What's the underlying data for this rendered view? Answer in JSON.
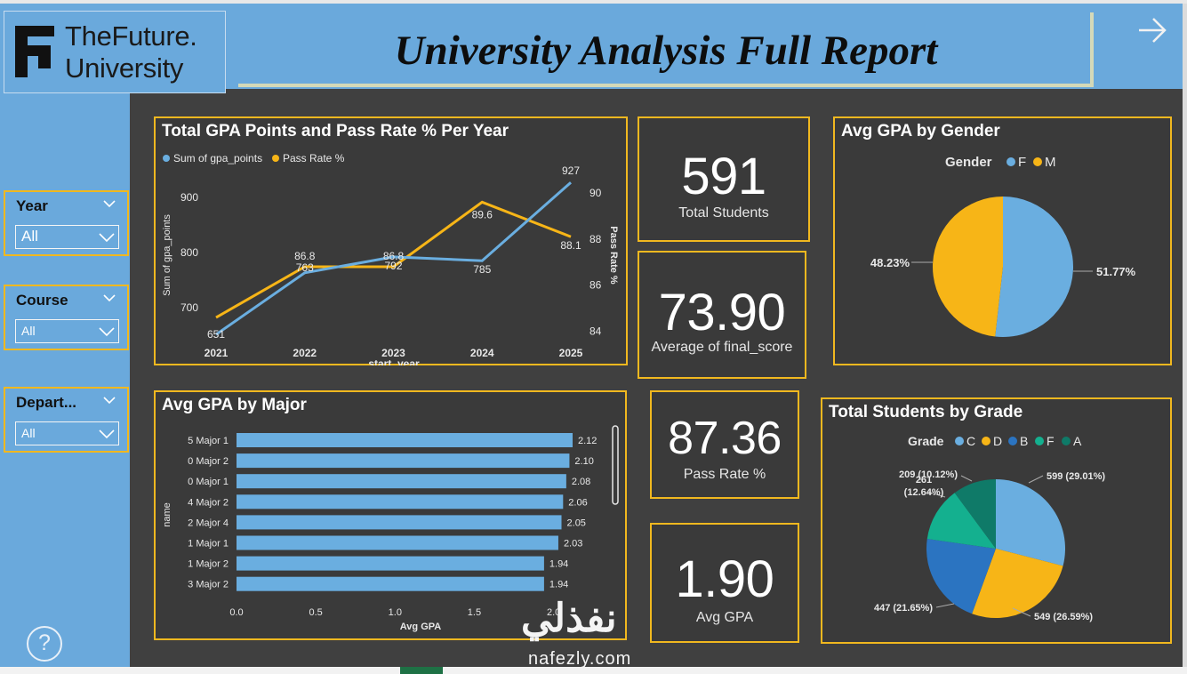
{
  "header": {
    "logo_line1": "TheFuture.",
    "logo_line2": "University",
    "title": "University Analysis Full Report",
    "nav_icon": "arrow-right-icon"
  },
  "slicers": [
    {
      "label": "Year",
      "value": "All"
    },
    {
      "label": "Course",
      "value": "All"
    },
    {
      "label": "Depart...",
      "value": "All"
    }
  ],
  "help_label": "?",
  "kpis": {
    "students": {
      "value": "591",
      "label": "Total Students"
    },
    "final_score": {
      "value": "73.90",
      "label": "Average of final_score"
    },
    "pass_rate": {
      "value": "87.36",
      "label": "Pass Rate %"
    },
    "avg_gpa": {
      "value": "1.90",
      "label": "Avg GPA"
    }
  },
  "colors": {
    "accent_border": "#f1b81f",
    "blue": "#6aaee0",
    "yellow": "#f7b517",
    "panel": "#6aa9dc"
  },
  "chart_data": [
    {
      "type": "line",
      "title": "Total GPA Points and Pass Rate % Per Year",
      "xlabel": "start_year",
      "ylabel": "Sum of gpa_points",
      "y2label": "Pass Rate %",
      "x": [
        "2021",
        "2022",
        "2023",
        "2024",
        "2025"
      ],
      "ylim": [
        640,
        950
      ],
      "yticks": [
        700,
        800,
        900
      ],
      "y2lim": [
        83.6,
        91.0
      ],
      "y2ticks": [
        84,
        86,
        88,
        90
      ],
      "series": [
        {
          "name": "Sum of gpa_points",
          "axis": "y",
          "values": [
            651,
            763,
            792,
            785,
            927
          ],
          "labels": [
            "651",
            "763",
            "792",
            "785",
            "927"
          ]
        },
        {
          "name": "Pass Rate %",
          "axis": "y2",
          "values": [
            84.6,
            86.8,
            86.8,
            89.6,
            88.1
          ],
          "labels": [
            "",
            "86.8",
            "86.8",
            "89.6",
            "88.1"
          ]
        }
      ]
    },
    {
      "type": "bar",
      "orientation": "horizontal",
      "title": "Avg GPA by Major",
      "xlabel": "Avg GPA",
      "ylabel": "name",
      "categories": [
        "5 Major 1",
        "0 Major 2",
        "0 Major 1",
        "4 Major 2",
        "2 Major 4",
        "1 Major 1",
        "1 Major 2",
        "3 Major 2"
      ],
      "values": [
        2.12,
        2.1,
        2.08,
        2.06,
        2.05,
        2.03,
        1.94,
        1.94
      ],
      "value_labels": [
        "2.12",
        "2.10",
        "2.08",
        "2.06",
        "2.05",
        "2.03",
        "1.94",
        "1.94"
      ],
      "xlim": [
        0,
        2.4
      ],
      "xticks": [
        "0.0",
        "0.5",
        "1.0",
        "1.5",
        "2.0"
      ]
    },
    {
      "type": "pie",
      "title": "Avg GPA by Gender",
      "legend_title": "Gender",
      "labels": [
        "F",
        "M"
      ],
      "values": [
        51.77,
        48.23
      ],
      "slice_labels": [
        "51.77%",
        "48.23%"
      ]
    },
    {
      "type": "pie",
      "title": "Total Students by Grade",
      "legend_title": "Grade",
      "labels": [
        "C",
        "D",
        "B",
        "F",
        "A"
      ],
      "values": [
        599,
        549,
        447,
        261,
        209
      ],
      "slice_labels": [
        "599 (29.01%)",
        "549 (26.59%)",
        "447 (21.65%)",
        "261 (12.64%)",
        "209 (10.12%)"
      ]
    }
  ],
  "watermark": {
    "line1": "نفذلي",
    "line2": "nafezly.com"
  }
}
